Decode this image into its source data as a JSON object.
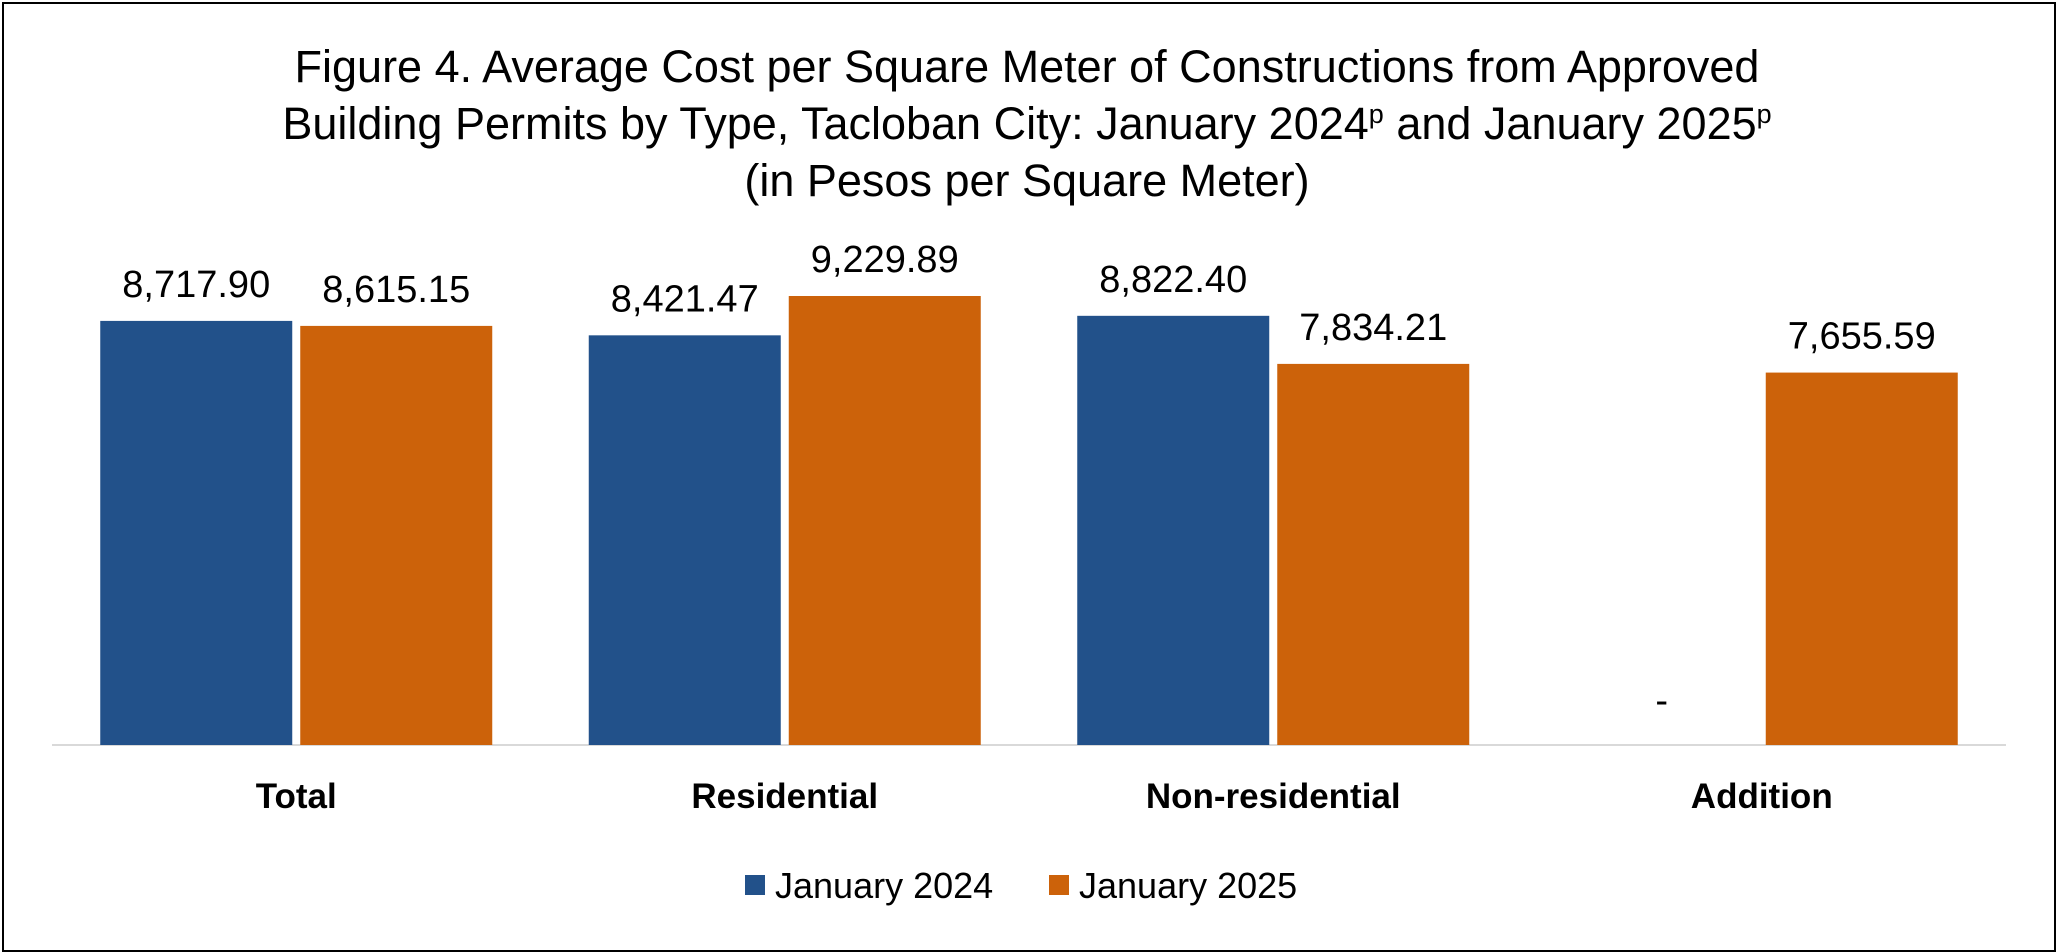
{
  "chart_data": {
    "type": "bar",
    "title": {
      "line1": "Figure 4. Average Cost per Square Meter of Constructions from Approved",
      "line2_pre": "Building Permits by Type, Tacloban City: January 2024",
      "line2_sup1": "p",
      "line2_mid": " and January 2025",
      "line2_sup2": "p",
      "line3": "(in Pesos per Square Meter)"
    },
    "categories": [
      "Total",
      "Residential",
      "Non-residential",
      "Addition"
    ],
    "series": [
      {
        "name": "January 2024",
        "color": "#22518A",
        "values": [
          8717.9,
          8421.47,
          8822.4,
          null
        ],
        "labels": [
          "8,717.90",
          "8,421.47",
          "8,822.40",
          "-"
        ]
      },
      {
        "name": "January 2025",
        "color": "#CC620A",
        "values": [
          8615.15,
          9229.89,
          7834.21,
          7655.59
        ],
        "labels": [
          "8,615.15",
          "9,229.89",
          "7,834.21",
          "7,655.59"
        ]
      }
    ],
    "ylim": [
      0,
      9229.89
    ],
    "grid": false,
    "legend": "bottom-center",
    "baseline_color": "#D9D9D9"
  }
}
